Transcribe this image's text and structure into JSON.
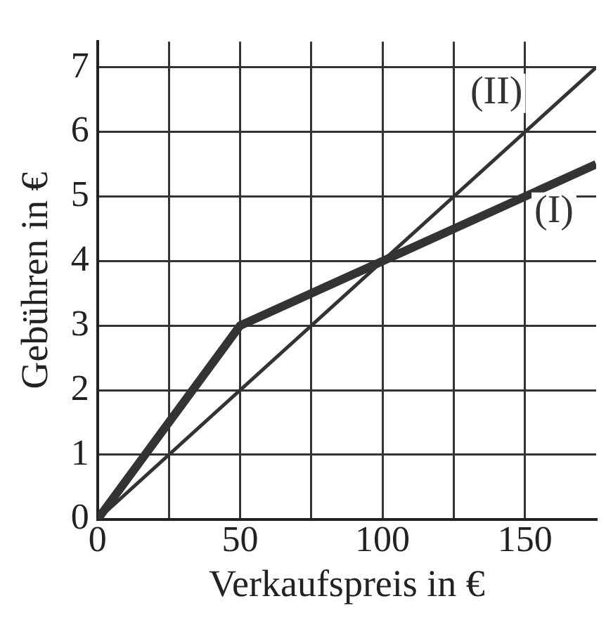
{
  "chart_data": {
    "type": "line",
    "xlabel": "Verkaufspreis in €",
    "ylabel": "Gebühren in €",
    "series": [
      {
        "name": "(I)",
        "color": "#333333",
        "x": [
          0,
          50,
          100,
          175
        ],
        "values": [
          0,
          3,
          4,
          5.5
        ]
      },
      {
        "name": "(II)",
        "color": "#333333",
        "x": [
          0,
          175
        ],
        "values": [
          0,
          7
        ]
      }
    ],
    "xlim": [
      0,
      175
    ],
    "xticks": [
      0,
      {
        "value": 25,
        "label": null
      },
      50,
      {
        "value": 75,
        "label": null
      },
      100,
      {
        "value": 125,
        "label": null
      },
      150
    ],
    "ylim": [
      0,
      7.4
    ],
    "yticks": [
      0,
      1,
      2,
      3,
      4,
      5,
      6,
      7
    ],
    "grid": true,
    "legend": false,
    "marker": "none",
    "line_style": "solid"
  }
}
